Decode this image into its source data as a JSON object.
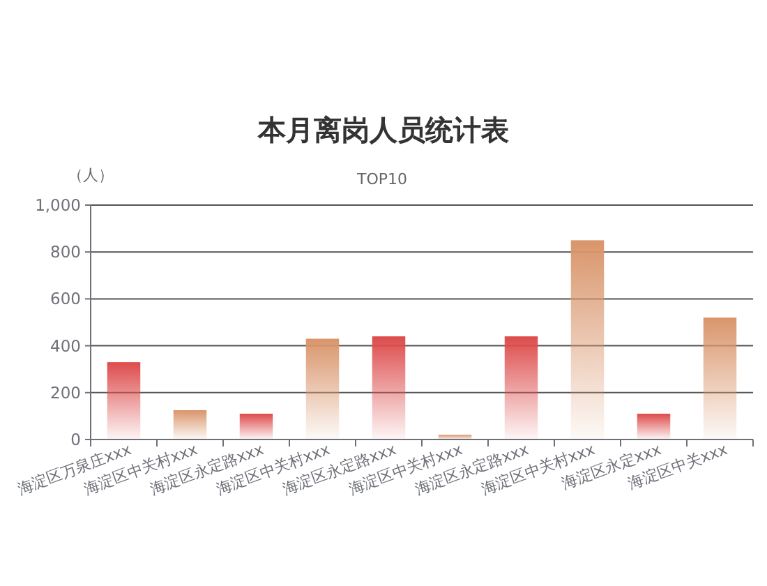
{
  "chart_data": {
    "type": "bar",
    "title": "本月离岗人员统计表",
    "subtitle": "TOP10",
    "ylabel": "（人）",
    "categories": [
      "海淀区万泉庄xxx",
      "海淀区中关村xxx",
      "海淀区永定路xxx",
      "海淀区中关村xxx",
      "海淀区永定路xxx",
      "海淀区中关村xxx",
      "海淀区永定路xxx",
      "海淀区中关村xxx",
      "海淀区永定xxx",
      "海淀区中关xxx"
    ],
    "values": [
      330,
      125,
      110,
      430,
      440,
      20,
      440,
      850,
      110,
      520
    ],
    "colors": [
      "#dd4b4b",
      "#d9956b",
      "#dd4b4b",
      "#d9956b",
      "#dd4b4b",
      "#d9956b",
      "#dd4b4b",
      "#d9956b",
      "#dd4b4b",
      "#d9956b"
    ],
    "ylim": [
      0,
      1000
    ],
    "yticks": [
      0,
      200,
      400,
      600,
      800,
      {
        "value": 1000,
        "label": "1,000"
      }
    ],
    "grid": "y"
  }
}
